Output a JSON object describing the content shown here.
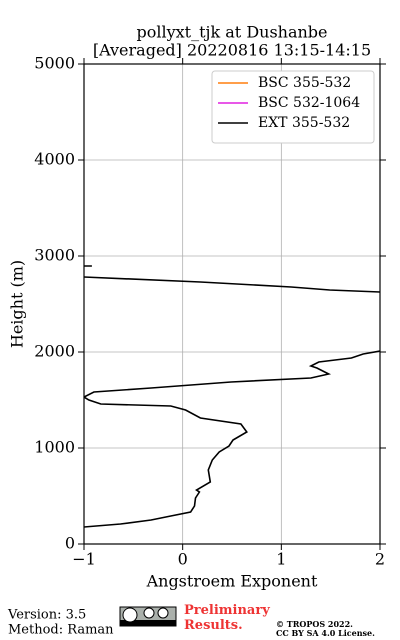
{
  "chart_data": {
    "type": "line",
    "title": "pollyxt_tjk at Dushanbe",
    "subtitle": "[Averaged] 20220816 13:15-14:15",
    "x_label": "Angstroem Exponent",
    "y_label": "Height (m)",
    "orientation": "vertical-profile",
    "y": [
      177,
      208,
      250,
      292,
      333,
      396,
      479,
      542,
      563,
      646,
      771,
      875,
      958,
      1021,
      1083,
      1167,
      1250,
      1313,
      1396,
      1438,
      1458,
      1500,
      1531,
      1583,
      1625,
      1688,
      1729,
      1771,
      1833,
      1854,
      1896,
      1938,
      1979,
      2010,
      2300,
      2625,
      2646,
      2677,
      2729,
      2781,
      2850,
      2896,
      2896
    ],
    "series": [
      {
        "name": "BSC 355-532",
        "color": "#ff7f0e",
        "values": [
          null,
          null,
          null,
          null,
          null,
          null,
          null,
          null,
          null,
          null,
          null,
          null,
          null,
          null,
          null,
          null,
          null,
          null,
          null,
          null,
          null,
          null,
          null,
          null,
          null,
          null,
          null,
          null,
          null,
          null,
          null,
          null,
          null,
          null,
          null,
          null,
          null,
          null,
          null,
          null,
          null,
          null,
          null
        ]
      },
      {
        "name": "BSC 532-1064",
        "color": "#e020e0",
        "values": [
          null,
          null,
          null,
          null,
          null,
          null,
          null,
          null,
          null,
          null,
          null,
          null,
          null,
          null,
          null,
          null,
          null,
          null,
          null,
          null,
          null,
          null,
          null,
          null,
          null,
          null,
          null,
          null,
          null,
          null,
          null,
          null,
          null,
          null,
          null,
          null,
          null,
          null,
          null,
          null,
          null,
          null,
          null
        ]
      },
      {
        "name": "EXT 355-532",
        "color": "#000000",
        "values": [
          -1,
          -0.63,
          -0.32,
          -0.12,
          0.08,
          0.12,
          0.13,
          0.17,
          0.14,
          0.28,
          0.26,
          0.3,
          0.37,
          0.47,
          0.51,
          0.65,
          0.59,
          0.18,
          0.03,
          -0.12,
          -0.83,
          -0.95,
          -1,
          -0.9,
          -0.32,
          0.49,
          1.3,
          1.48,
          1.36,
          1.3,
          1.38,
          1.71,
          1.83,
          2,
          null,
          2,
          1.49,
          1.1,
          0.18,
          -1,
          null,
          -1,
          -0.92
        ]
      }
    ],
    "xlim": [
      -1,
      2
    ],
    "xticks": [
      {
        "value": -1,
        "label": "−1"
      },
      0,
      1,
      2
    ],
    "ylim": [
      0,
      5000
    ],
    "yticks": [
      0,
      1000,
      2000,
      3000,
      4000,
      5000
    ],
    "grid": true,
    "legend": "upper right"
  },
  "footer": {
    "version": "Version: 3.5",
    "method": "Method: Raman",
    "preliminary": "Preliminary Results.",
    "copyright": "© TROPOS 2022.",
    "license": "CC BY SA 4.0 License."
  }
}
